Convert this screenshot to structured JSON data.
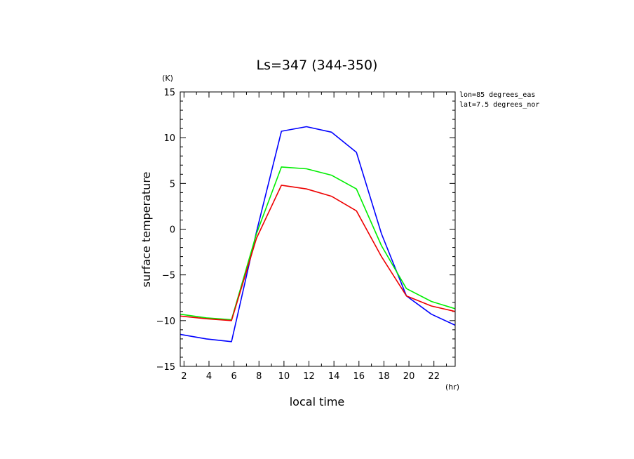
{
  "chart_data": {
    "type": "line",
    "title": "Ls=347 (344-350)",
    "xlabel": "local time",
    "ylabel": "surface temperature",
    "x_unit": "(hr)",
    "y_unit": "(K)",
    "xlim": [
      1.7,
      23.7
    ],
    "ylim": [
      -15,
      15
    ],
    "x_ticks": [
      2,
      4,
      6,
      8,
      10,
      12,
      14,
      16,
      18,
      20,
      22
    ],
    "y_ticks": [
      -15,
      -10,
      -5,
      0,
      5,
      10,
      15
    ],
    "x_tick_labels": [
      "2",
      "4",
      "6",
      "8",
      "10",
      "12",
      "14",
      "16",
      "18",
      "20",
      "22"
    ],
    "y_tick_labels": [
      "−15",
      "−10",
      "−5",
      "0",
      "5",
      "10",
      "15"
    ],
    "annotations": [
      "lon=85 degrees_eas",
      "lat=7.5 degrees_nor"
    ],
    "grid": false,
    "x": [
      1.7,
      3.8,
      5.8,
      7.8,
      9.8,
      11.8,
      13.8,
      15.8,
      17.8,
      19.8,
      21.8,
      23.7
    ],
    "series": [
      {
        "color": "#0000ff",
        "values": [
          -11.5,
          -12.0,
          -12.3,
          -0.3,
          10.7,
          11.2,
          10.6,
          8.4,
          -0.5,
          -7.3,
          -9.3,
          -10.5
        ]
      },
      {
        "color": "#00ee00",
        "values": [
          -9.3,
          -9.7,
          -9.9,
          -0.5,
          6.8,
          6.6,
          5.9,
          4.4,
          -1.8,
          -6.5,
          -7.9,
          -8.7
        ]
      },
      {
        "color": "#ee0000",
        "values": [
          -9.5,
          -9.8,
          -10.0,
          -1.0,
          4.8,
          4.4,
          3.6,
          2.0,
          -3.0,
          -7.3,
          -8.4,
          -9.0
        ]
      }
    ]
  }
}
